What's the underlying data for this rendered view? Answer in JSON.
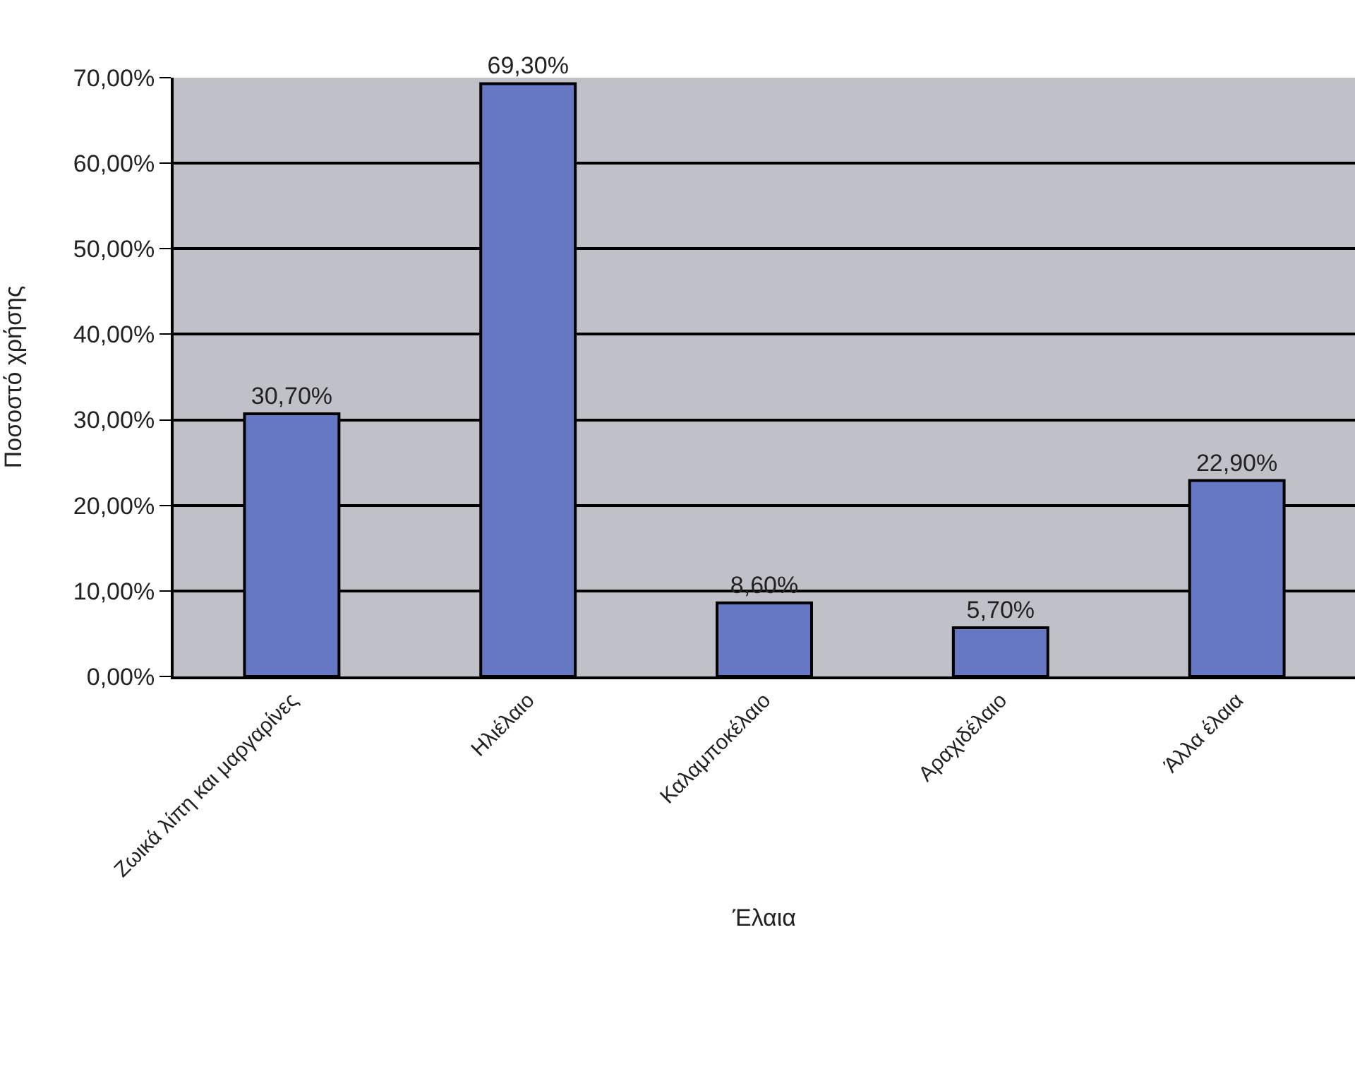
{
  "chart_data": {
    "type": "bar",
    "xlabel": "Έλαια",
    "ylabel": "Ποσοστό χρήσης",
    "categories": [
      "Ζωικά λίπη και μαργαρίνες",
      "Ηλιέλαιο",
      "Καλαμποκέλαιο",
      "Αραχιδέλαιο",
      "Άλλα έλαια"
    ],
    "values": [
      30.7,
      69.3,
      8.6,
      5.7,
      22.9
    ],
    "value_labels": [
      "30,70%",
      "69,30%",
      "8,60%",
      "5,70%",
      "22,90%"
    ],
    "color": "#6677c4",
    "ylim": [
      0,
      70
    ],
    "yticks": [
      {
        "value": 0,
        "label": "0,00%"
      },
      {
        "value": 10,
        "label": "10,00%"
      },
      {
        "value": 20,
        "label": "20,00%"
      },
      {
        "value": 30,
        "label": "30,00%"
      },
      {
        "value": 40,
        "label": "40,00%"
      },
      {
        "value": 50,
        "label": "50,00%"
      },
      {
        "value": 60,
        "label": "60,00%"
      },
      {
        "value": 70,
        "label": "70,00%"
      }
    ],
    "grid": "y",
    "legend": false
  }
}
